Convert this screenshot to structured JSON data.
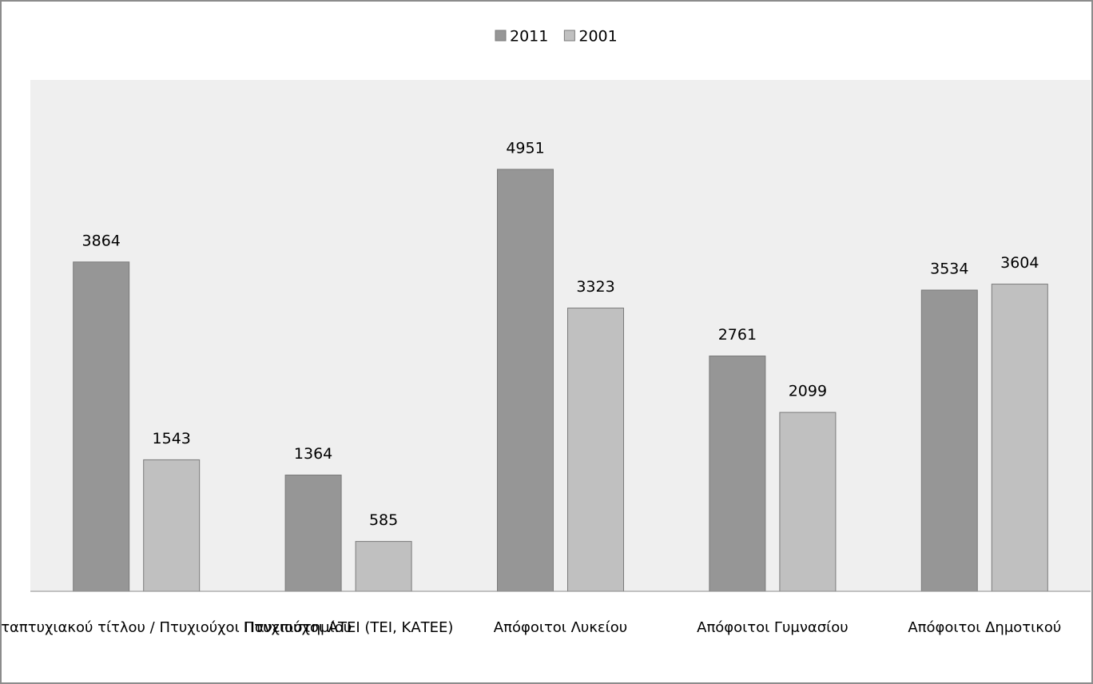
{
  "chart_data": {
    "type": "bar",
    "categories": [
      "Κάτοχοι μεταπτυχιακού τίτλου / Πτυχιούχοι Πανεπιστημίου",
      "Πτυχιούχοι ΑΤΕΙ (ΤΕΙ, ΚΑΤΕΕ)",
      "Απόφοιτοι Λυκείου",
      "Απόφοιτοι Γυμνασίου",
      "Απόφοιτοι Δημοτικού"
    ],
    "series": [
      {
        "name": "2011",
        "color": "#969696",
        "values": [
          3864,
          1364,
          4951,
          2761,
          3534
        ]
      },
      {
        "name": "2001",
        "color": "#c0c0c0",
        "values": [
          1543,
          585,
          3323,
          2099,
          3604
        ]
      }
    ],
    "ylim": [
      0,
      6000
    ],
    "legend": "top"
  }
}
